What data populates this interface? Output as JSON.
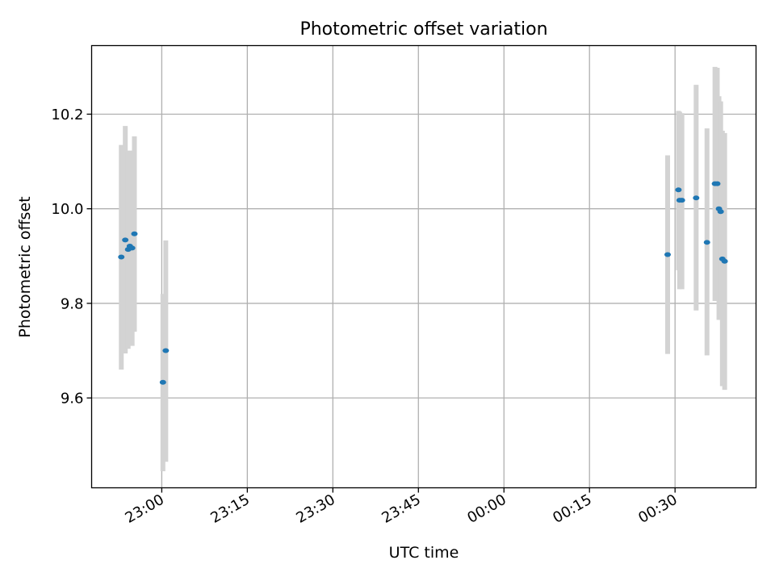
{
  "chart_data": {
    "type": "scatter",
    "title": "Photometric offset variation",
    "xlabel": "UTC time",
    "ylabel": "Photometric offset",
    "x_unit": "minutes relative to 00:00 UTC",
    "xlim": [
      -72.3,
      44.2
    ],
    "ylim": [
      9.41,
      10.345
    ],
    "grid": true,
    "x_ticks": [
      {
        "value": -60,
        "label": "23:00"
      },
      {
        "value": -45,
        "label": "23:15"
      },
      {
        "value": -30,
        "label": "23:30"
      },
      {
        "value": -15,
        "label": "23:45"
      },
      {
        "value": 0,
        "label": "00:00"
      },
      {
        "value": 15,
        "label": "00:15"
      },
      {
        "value": 30,
        "label": "00:30"
      }
    ],
    "y_ticks": [
      {
        "value": 9.6,
        "label": "9.6"
      },
      {
        "value": 9.8,
        "label": "9.8"
      },
      {
        "value": 10.0,
        "label": "10.0"
      },
      {
        "value": 10.2,
        "label": "10.2"
      }
    ],
    "colors": {
      "point": "#1f77b4",
      "errorbar": "#d3d3d3",
      "grid": "#b0b0b0"
    },
    "points": [
      {
        "x": -67.1,
        "y": 9.898,
        "ylow": 9.66,
        "yhigh": 10.135
      },
      {
        "x": -66.4,
        "y": 9.934,
        "ylow": 9.694,
        "yhigh": 10.175
      },
      {
        "x": -65.9,
        "y": 9.914,
        "ylow": 9.704,
        "yhigh": 10.122
      },
      {
        "x": -65.6,
        "y": 9.921,
        "ylow": 9.712,
        "yhigh": 10.123
      },
      {
        "x": -65.2,
        "y": 9.917,
        "ylow": 9.71,
        "yhigh": 10.122
      },
      {
        "x": -64.8,
        "y": 9.947,
        "ylow": 9.74,
        "yhigh": 10.153
      },
      {
        "x": -59.8,
        "y": 9.633,
        "ylow": 9.445,
        "yhigh": 9.82
      },
      {
        "x": -59.3,
        "y": 9.7,
        "ylow": 9.465,
        "yhigh": 9.933
      },
      {
        "x": 28.7,
        "y": 9.903,
        "ylow": 9.693,
        "yhigh": 10.113
      },
      {
        "x": 30.6,
        "y": 10.04,
        "ylow": 9.87,
        "yhigh": 10.207
      },
      {
        "x": 30.8,
        "y": 10.018,
        "ylow": 9.83,
        "yhigh": 10.205
      },
      {
        "x": 31.2,
        "y": 10.018,
        "ylow": 9.83,
        "yhigh": 10.202
      },
      {
        "x": 33.7,
        "y": 10.023,
        "ylow": 9.785,
        "yhigh": 10.262
      },
      {
        "x": 35.6,
        "y": 9.929,
        "ylow": 9.69,
        "yhigh": 10.17
      },
      {
        "x": 37.0,
        "y": 10.053,
        "ylow": 9.805,
        "yhigh": 10.3
      },
      {
        "x": 37.4,
        "y": 10.053,
        "ylow": 9.81,
        "yhigh": 10.298
      },
      {
        "x": 37.7,
        "y": 10.0,
        "ylow": 9.765,
        "yhigh": 10.238
      },
      {
        "x": 38.0,
        "y": 9.994,
        "ylow": 9.765,
        "yhigh": 10.227
      },
      {
        "x": 38.3,
        "y": 9.894,
        "ylow": 9.625,
        "yhigh": 10.165
      },
      {
        "x": 38.7,
        "y": 9.889,
        "ylow": 9.617,
        "yhigh": 10.16
      }
    ]
  }
}
